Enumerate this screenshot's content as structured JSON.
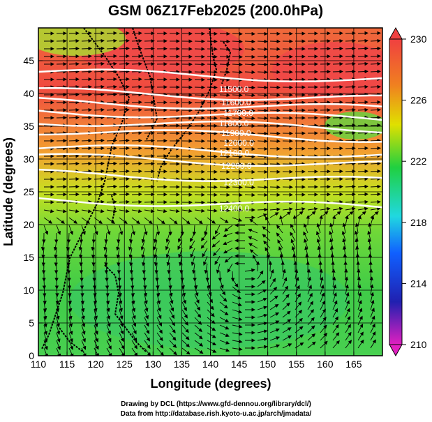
{
  "title": "GSM 06Z17Feb2025 (200.0hPa)",
  "x_axis": {
    "label": "Longitude (degrees)",
    "range": [
      110,
      170
    ],
    "ticks": [
      "110",
      "115",
      "120",
      "125",
      "130",
      "135",
      "140",
      "145",
      "150",
      "155",
      "160",
      "165"
    ]
  },
  "y_axis": {
    "label": "Latitude  (degrees)",
    "range": [
      0,
      50
    ],
    "ticks": [
      "0",
      "5",
      "10",
      "15",
      "20",
      "25",
      "30",
      "35",
      "40",
      "45"
    ]
  },
  "colorbar": {
    "min": 210,
    "max": 230,
    "ticks": [
      "210",
      "214",
      "218",
      "222",
      "226",
      "230"
    ],
    "stops": [
      "#e020c0",
      "#2020b0",
      "#1060ff",
      "#20d8e0",
      "#20d040",
      "#e0e000",
      "#f08020",
      "#f04040"
    ]
  },
  "contour_labels": [
    "11500.0",
    "11600.0",
    "11700.0",
    "11800.0",
    "11900.0",
    "12000.0",
    "12100.0",
    "12200.0",
    "12300.0",
    "12400.0"
  ],
  "credits": {
    "line1": "Drawing by DCL (https://www.gfd-dennou.org/library/dcl/)",
    "line2": "Data from http://database.rish.kyoto-u.ac.jp/arch/jmadata/"
  },
  "map_features": {
    "grid_lines": "on",
    "cyclonic_circulation_center": [
      146,
      13
    ]
  }
}
